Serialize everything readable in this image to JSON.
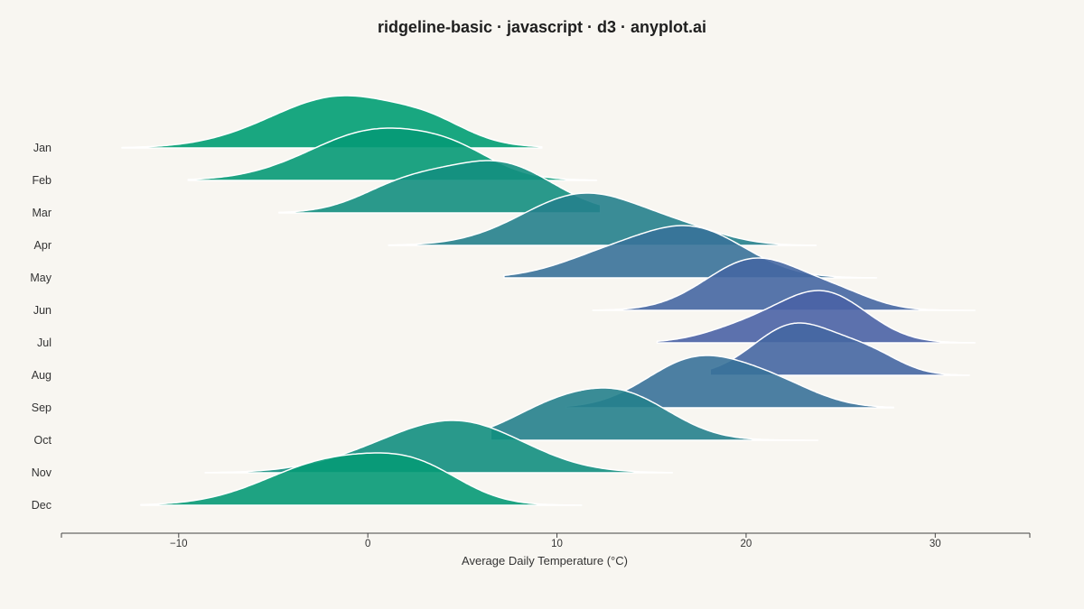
{
  "title": "ridgeline-basic · javascript · d3 · anyplot.ai",
  "chart_data": {
    "type": "ridgeline",
    "title": "ridgeline-basic · javascript · d3 · anyplot.ai",
    "xlabel": "Average Daily Temperature (°C)",
    "ylabel": "",
    "xlim": [
      -16.2,
      35
    ],
    "xticks": [
      -10,
      0,
      10,
      20,
      30
    ],
    "xtick_labels": [
      "−10",
      "0",
      "10",
      "20",
      "30"
    ],
    "grid": false,
    "legend": "none",
    "colors": {
      "start": "#009E73",
      "end": "#4A63A5",
      "outline": "#FFFFFF",
      "background": "#F8F6F1"
    },
    "categories": [
      "Jan",
      "Feb",
      "Mar",
      "Apr",
      "May",
      "Jun",
      "Jul",
      "Aug",
      "Sep",
      "Oct",
      "Nov",
      "Dec"
    ],
    "series": [
      {
        "name": "Jan",
        "range": [
          -13,
          9.2
        ],
        "peaks": [
          {
            "mu": -1.3,
            "sd": 3.8,
            "w": 1.0
          },
          {
            "mu": 3.5,
            "sd": 1.8,
            "w": 0.2
          }
        ]
      },
      {
        "name": "Feb",
        "range": [
          -9.5,
          12.1
        ],
        "peaks": [
          {
            "mu": 0.6,
            "sd": 3.6,
            "w": 1.0
          },
          {
            "mu": 4.8,
            "sd": 2.0,
            "w": 0.25
          }
        ]
      },
      {
        "name": "Mar",
        "range": [
          -4.7,
          12.3
        ],
        "peaks": [
          {
            "mu": 7.0,
            "sd": 2.8,
            "w": 1.0
          },
          {
            "mu": 2.0,
            "sd": 2.4,
            "w": 0.55
          }
        ]
      },
      {
        "name": "Apr",
        "range": [
          1.1,
          23.7
        ],
        "peaks": [
          {
            "mu": 11.5,
            "sd": 3.3,
            "w": 1.0
          },
          {
            "mu": 17.0,
            "sd": 2.2,
            "w": 0.18
          }
        ]
      },
      {
        "name": "May",
        "range": [
          7.2,
          26.9
        ],
        "peaks": [
          {
            "mu": 17.2,
            "sd": 2.8,
            "w": 1.0
          },
          {
            "mu": 12.5,
            "sd": 2.6,
            "w": 0.4
          }
        ]
      },
      {
        "name": "Jun",
        "range": [
          11.9,
          32.1
        ],
        "peaks": [
          {
            "mu": 20.5,
            "sd": 2.6,
            "w": 1.0
          },
          {
            "mu": 25.0,
            "sd": 1.9,
            "w": 0.25
          }
        ]
      },
      {
        "name": "Jul",
        "range": [
          15.3,
          32.1
        ],
        "peaks": [
          {
            "mu": 24.1,
            "sd": 2.3,
            "w": 1.0
          },
          {
            "mu": 20.0,
            "sd": 2.2,
            "w": 0.3
          }
        ]
      },
      {
        "name": "Aug",
        "range": [
          18.1,
          31.8
        ],
        "peaks": [
          {
            "mu": 22.6,
            "sd": 2.2,
            "w": 1.0
          },
          {
            "mu": 26.5,
            "sd": 1.7,
            "w": 0.38
          }
        ]
      },
      {
        "name": "Sep",
        "range": [
          10.5,
          27.8
        ],
        "peaks": [
          {
            "mu": 17.3,
            "sd": 2.6,
            "w": 1.0
          },
          {
            "mu": 21.5,
            "sd": 2.3,
            "w": 0.45
          }
        ]
      },
      {
        "name": "Oct",
        "range": [
          6.5,
          23.8
        ],
        "peaks": [
          {
            "mu": 13.5,
            "sd": 2.6,
            "w": 1.0
          },
          {
            "mu": 9.5,
            "sd": 2.4,
            "w": 0.6
          }
        ]
      },
      {
        "name": "Nov",
        "range": [
          -8.6,
          16.1
        ],
        "peaks": [
          {
            "mu": 5.0,
            "sd": 3.4,
            "w": 1.0
          },
          {
            "mu": 0.5,
            "sd": 3.2,
            "w": 0.25
          }
        ]
      },
      {
        "name": "Dec",
        "range": [
          -12,
          11.3
        ],
        "peaks": [
          {
            "mu": -1.8,
            "sd": 3.5,
            "w": 1.0
          },
          {
            "mu": 2.8,
            "sd": 2.4,
            "w": 0.6
          }
        ]
      }
    ]
  }
}
